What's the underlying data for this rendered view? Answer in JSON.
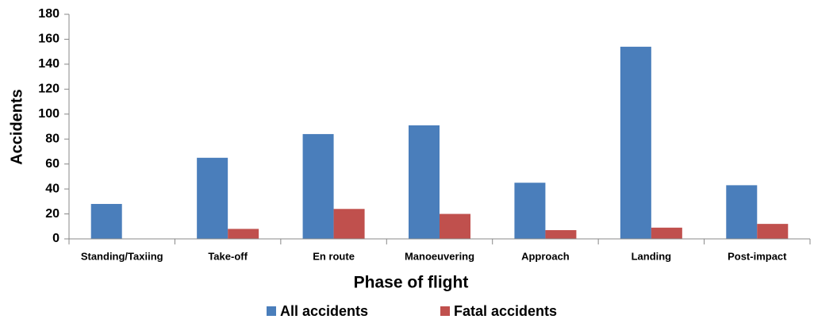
{
  "chart_data": {
    "type": "bar",
    "x_label": "Phase of flight",
    "y_label": "Accidents",
    "categories": [
      "Standing/Taxiing",
      "Take-off",
      "En route",
      "Manoeuvering",
      "Approach",
      "Landing",
      "Post-impact"
    ],
    "series": [
      {
        "name": "All accidents",
        "color": "#4a7ebb",
        "values": [
          28,
          65,
          84,
          91,
          45,
          154,
          43
        ]
      },
      {
        "name": "Fatal accidents",
        "color": "#c0504d",
        "values": [
          0,
          8,
          24,
          20,
          7,
          9,
          12
        ]
      }
    ],
    "ylim": [
      0,
      180
    ],
    "yticks": [
      0,
      20,
      40,
      60,
      80,
      100,
      120,
      140,
      160,
      180
    ],
    "legend": "bottom"
  }
}
